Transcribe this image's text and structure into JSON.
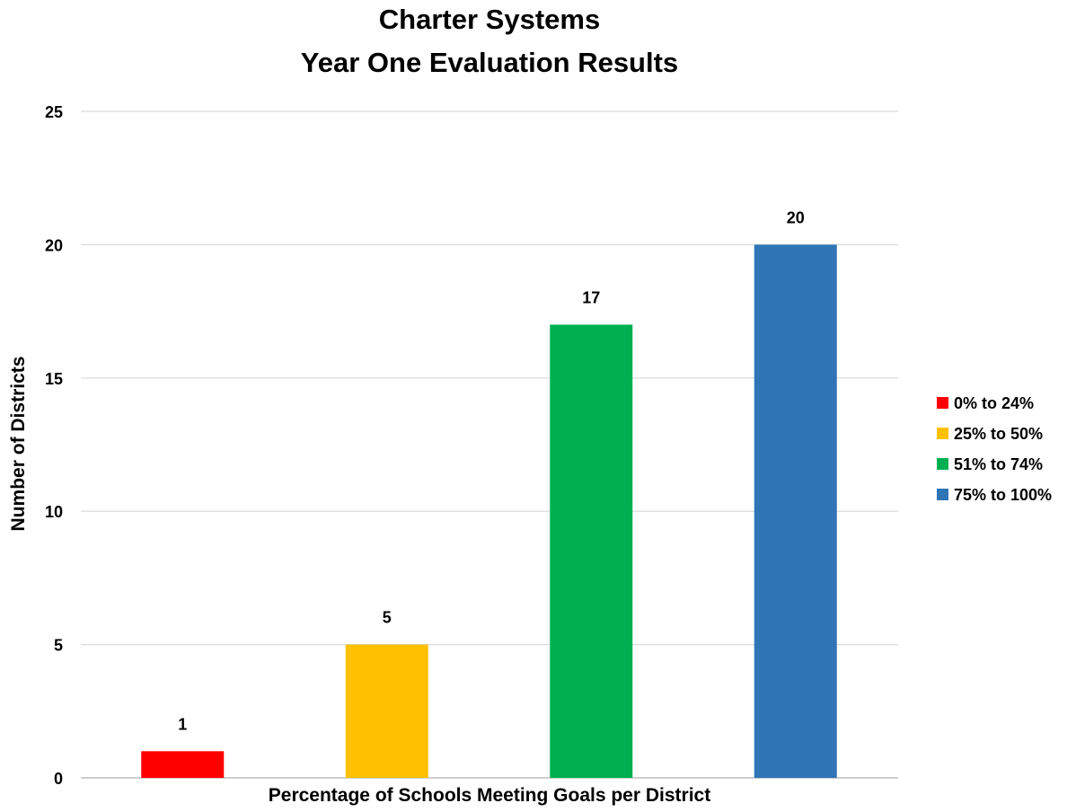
{
  "chart_data": {
    "type": "bar",
    "title": [
      "Charter Systems",
      "Year One Evaluation Results"
    ],
    "xlabel": "Percentage of Schools Meeting Goals per District",
    "ylabel": "Number of Districts",
    "ylim": [
      0,
      25
    ],
    "yticks": [
      0,
      5,
      10,
      15,
      20,
      25
    ],
    "grid": true,
    "legend_position": "right",
    "categories": [
      "0% to 24%",
      "25% to 50%",
      "51% to 74%",
      "75% to 100%"
    ],
    "values": [
      1,
      5,
      17,
      20
    ],
    "colors": [
      "#ff0000",
      "#ffc000",
      "#00b050",
      "#2e75b6"
    ],
    "data_labels": [
      "1",
      "5",
      "17",
      "20"
    ]
  }
}
